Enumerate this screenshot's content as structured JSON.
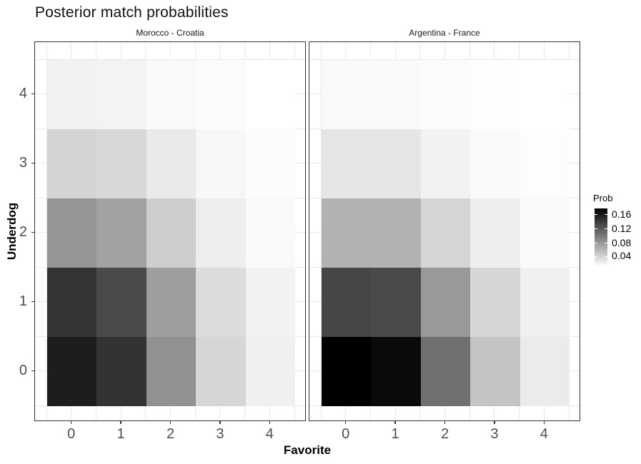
{
  "title": "Posterior match probabilities",
  "axes": {
    "x_title": "Favorite",
    "y_title": "Underdog",
    "x_ticks": [
      "0",
      "1",
      "2",
      "3",
      "4"
    ],
    "y_ticks": [
      "4",
      "3",
      "2",
      "1",
      "0"
    ]
  },
  "legend": {
    "title": "Prob",
    "labels": [
      "0.16",
      "0.12",
      "0.08",
      "0.04"
    ],
    "top_color": "#000000",
    "bottom_color": "#ffffff"
  },
  "chart_data": {
    "type": "heatmap",
    "xlabel": "Favorite",
    "ylabel": "Underdog",
    "x_values": [
      0,
      1,
      2,
      3,
      4
    ],
    "y_values_top_to_bottom": [
      4,
      3,
      2,
      1,
      0
    ],
    "x_domain": [
      -0.5,
      4.5
    ],
    "y_domain": [
      -0.5,
      4.5
    ],
    "fill_scale": {
      "name": "Prob",
      "low_color": "#ffffff",
      "high_color": "#000000",
      "range": [
        0.0,
        0.177
      ]
    },
    "facets": [
      {
        "label": "Morocco - Croatia",
        "probs_rows_top_to_bottom": [
          [
            0.009,
            0.008,
            0.004,
            0.002,
            0.0
          ],
          [
            0.03,
            0.027,
            0.015,
            0.006,
            0.002
          ],
          [
            0.074,
            0.065,
            0.034,
            0.012,
            0.004
          ],
          [
            0.141,
            0.126,
            0.067,
            0.024,
            0.009
          ],
          [
            0.156,
            0.142,
            0.076,
            0.028,
            0.01
          ]
        ],
        "colors_rows_top_to_bottom": [
          [
            "#f2f2f2",
            "#f3f3f3",
            "#f9f9f9",
            "#fcfcfc",
            "#ffffff"
          ],
          [
            "#d4d4d4",
            "#d8d8d8",
            "#eaeaea",
            "#f7f7f7",
            "#fcfcfc"
          ],
          [
            "#959595",
            "#a2a2a2",
            "#cecece",
            "#eeeeee",
            "#fafafa"
          ],
          [
            "#343434",
            "#4a4a4a",
            "#9e9e9e",
            "#dcdcdc",
            "#f2f2f2"
          ],
          [
            "#1d1d1d",
            "#333333",
            "#919191",
            "#d6d6d6",
            "#f0f0f0"
          ]
        ]
      },
      {
        "label": "Argentina - France",
        "probs_rows_top_to_bottom": [
          [
            0.004,
            0.004,
            0.002,
            0.001,
            0.0
          ],
          [
            0.017,
            0.017,
            0.009,
            0.004,
            0.001
          ],
          [
            0.053,
            0.053,
            0.029,
            0.012,
            0.004
          ],
          [
            0.128,
            0.126,
            0.071,
            0.028,
            0.01
          ],
          [
            0.177,
            0.17,
            0.099,
            0.041,
            0.014
          ]
        ],
        "colors_rows_top_to_bottom": [
          [
            "#fafafa",
            "#fafafa",
            "#fcfcfc",
            "#fefefe",
            "#ffffff"
          ],
          [
            "#e6e6e6",
            "#e6e6e6",
            "#f2f2f2",
            "#fafafa",
            "#fdfdfd"
          ],
          [
            "#b2b2b2",
            "#b2b2b2",
            "#d5d5d5",
            "#eeeeee",
            "#fafafa"
          ],
          [
            "#464646",
            "#4a4a4a",
            "#999999",
            "#d6d6d6",
            "#f0f0f0"
          ],
          [
            "#000000",
            "#0a0a0a",
            "#707070",
            "#c4c4c4",
            "#ebebeb"
          ]
        ]
      }
    ]
  }
}
